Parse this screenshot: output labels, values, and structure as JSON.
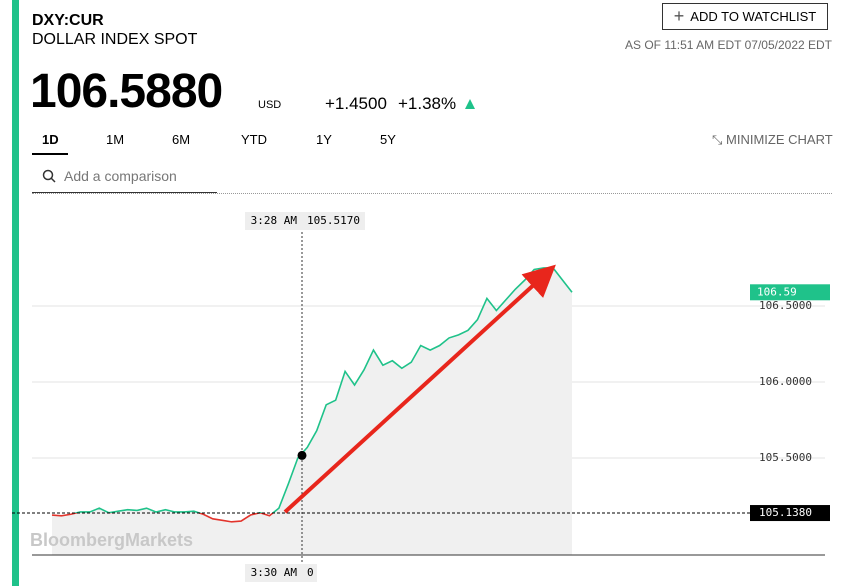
{
  "header": {
    "ticker": "DXY:CUR",
    "name": "DOLLAR INDEX SPOT",
    "price": "106.5880",
    "currency": "USD",
    "change": "+1.4500",
    "change_percent": "+1.38%",
    "watchlist_button": "ADD TO WATCHLIST",
    "timestamp": "AS OF 11:51 AM EDT 07/05/2022 EDT"
  },
  "tabs": [
    "1D",
    "1M",
    "6M",
    "YTD",
    "1Y",
    "5Y"
  ],
  "minimize": "MINIMIZE CHART",
  "search_placeholder": "Add a comparison",
  "chart_data": {
    "type": "line",
    "watermark": "BloombergMarkets",
    "values": [
      105.125,
      105.12,
      105.13,
      105.145,
      105.145,
      105.17,
      105.14,
      105.15,
      105.16,
      105.155,
      105.17,
      105.145,
      105.16,
      105.145,
      105.145,
      105.15,
      105.13,
      105.1,
      105.09,
      105.08,
      105.085,
      105.125,
      105.14,
      105.12,
      105.17,
      105.33,
      105.5,
      105.57,
      105.68,
      105.85,
      105.88,
      106.07,
      105.98,
      106.08,
      106.21,
      106.11,
      106.14,
      106.09,
      106.13,
      106.24,
      106.21,
      106.24,
      106.29,
      106.31,
      106.34,
      106.41,
      106.55,
      106.47,
      106.54,
      106.61,
      106.67,
      106.74,
      106.75,
      106.75,
      106.67,
      106.59
    ],
    "color": "#1fc28a",
    "below_color": "#e2342c",
    "area_color": "#f0f0f0",
    "ylim": [
      104.862,
      107.23
    ],
    "yticks": [
      {
        "value": 105.5,
        "label": "105.5000"
      },
      {
        "value": 106,
        "label": "106.0000"
      },
      {
        "value": 106.5,
        "label": "106.5000"
      }
    ],
    "grid": true,
    "previous_close": {
      "value": 105.138,
      "label": "105.1380"
    },
    "last": {
      "value": 106.59,
      "label": "106.59"
    },
    "crosshair": {
      "time": "3:28 AM",
      "value": 105.517,
      "value_label": "105.5170",
      "axis_time": "3:30 AM",
      "axis_value": "0"
    }
  }
}
